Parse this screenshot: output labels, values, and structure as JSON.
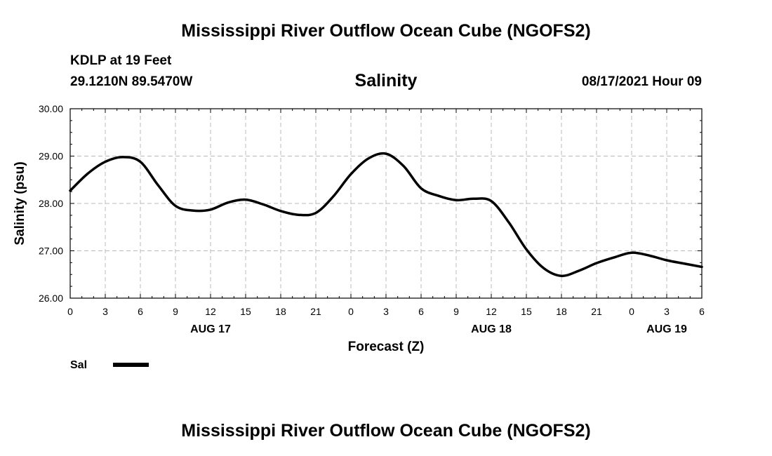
{
  "header": {
    "title": "Mississippi River Outflow Ocean Cube (NGOFS2)",
    "station": "KDLP at 19 Feet",
    "coords": "29.1210N  89.5470W",
    "variable": "Salinity",
    "datetime": "08/17/2021 Hour 09"
  },
  "footer": {
    "title": "Mississippi River Outflow Ocean Cube (NGOFS2)"
  },
  "colors": {
    "line": "#000000",
    "grid": "#bbbbbb"
  },
  "chart_data": {
    "type": "line",
    "title": "Salinity",
    "xlabel": "Forecast (Z)",
    "ylabel": "Salinity (psu)",
    "xlim": [
      0,
      54
    ],
    "ylim": [
      26.0,
      30.0
    ],
    "grid": true,
    "legend_position": "bottom-left",
    "x_ticks": [
      0,
      3,
      6,
      9,
      12,
      15,
      18,
      21,
      24,
      27,
      30,
      33,
      36,
      39,
      42,
      45,
      48,
      51,
      54
    ],
    "x_tick_labels": [
      "0",
      "3",
      "6",
      "9",
      "12",
      "15",
      "18",
      "21",
      "0",
      "3",
      "6",
      "9",
      "12",
      "15",
      "18",
      "21",
      "0",
      "3",
      "6"
    ],
    "y_ticks": [
      26.0,
      27.0,
      28.0,
      29.0,
      30.0
    ],
    "y_tick_labels": [
      "26.00",
      "27.00",
      "28.00",
      "29.00",
      "30.00"
    ],
    "day_labels": [
      {
        "x": 12,
        "label": "AUG 17"
      },
      {
        "x": 36,
        "label": "AUG 18"
      },
      {
        "x": 51,
        "label": "AUG 19"
      }
    ],
    "series": [
      {
        "name": "Sal",
        "x": [
          0,
          1.5,
          3,
          4.5,
          6,
          7.5,
          9,
          10.5,
          12,
          13.5,
          15,
          16.5,
          18,
          19.5,
          21,
          22.5,
          24,
          25.5,
          27,
          28.5,
          30,
          31.5,
          33,
          34.5,
          36,
          37.5,
          39,
          40.5,
          42,
          43.5,
          45,
          46.5,
          48,
          49.5,
          51,
          52.5,
          54
        ],
        "values": [
          28.27,
          28.63,
          28.88,
          28.98,
          28.88,
          28.39,
          27.95,
          27.85,
          27.87,
          28.02,
          28.08,
          27.98,
          27.84,
          27.76,
          27.8,
          28.15,
          28.62,
          28.95,
          29.05,
          28.79,
          28.32,
          28.16,
          28.07,
          28.1,
          28.05,
          27.6,
          27.03,
          26.63,
          26.47,
          26.58,
          26.74,
          26.86,
          26.96,
          26.9,
          26.8,
          26.73,
          26.66
        ]
      }
    ]
  }
}
